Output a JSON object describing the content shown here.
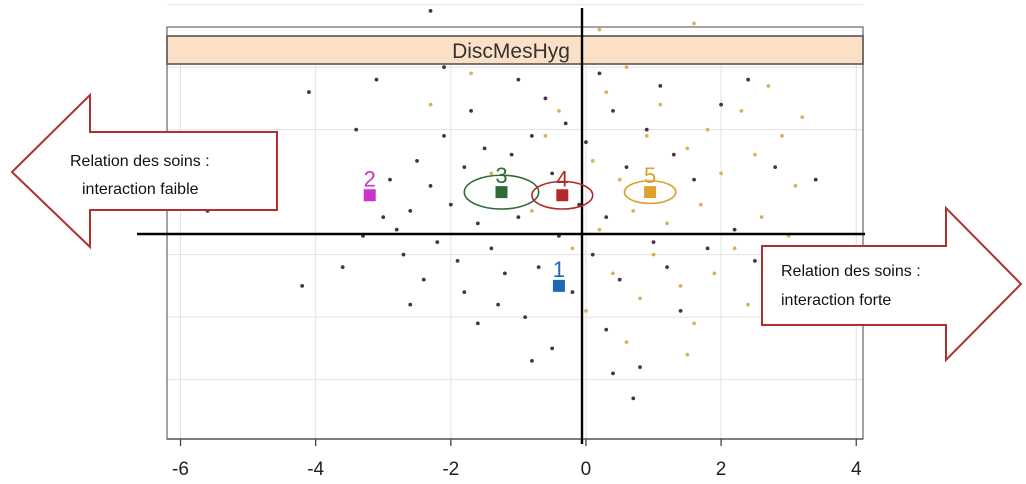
{
  "chart_data": {
    "type": "scatter",
    "title": "",
    "panel_title": "DiscMesHyg",
    "xlabel": "",
    "ylabel": "",
    "xlim": [
      -6.2,
      4.1
    ],
    "ylim": [
      -3.95,
      2.05
    ],
    "x_ticks": [
      -6,
      -4,
      -2,
      0,
      2,
      4
    ],
    "x_tick_labels": [
      "-6",
      "-4",
      "-2",
      "0",
      "2",
      "4"
    ],
    "grid": true,
    "arrow_left": {
      "line1": "Relation des soins :",
      "line2": "interaction faible"
    },
    "arrow_right": {
      "line1": "Relation des soins :",
      "line2": "interaction forte"
    },
    "clusters": [
      {
        "label": "1",
        "x": -0.4,
        "y": -1.5,
        "color": "#1f66b5",
        "ellipse": false
      },
      {
        "label": "2",
        "x": -3.2,
        "y": -0.05,
        "color": "#cc33cc",
        "ellipse": false
      },
      {
        "label": "3",
        "x": -1.25,
        "y": -0.0,
        "color": "#2e6b35",
        "ellipse": true,
        "rx": 0.55,
        "ry": 0.27
      },
      {
        "label": "4",
        "x": -0.35,
        "y": -0.05,
        "color": "#b02a2a",
        "ellipse": true,
        "rx": 0.45,
        "ry": 0.22
      },
      {
        "label": "5",
        "x": 0.95,
        "y": 0.0,
        "color": "#d9a230",
        "ellipse": true,
        "rx": 0.38,
        "ry": 0.18
      }
    ],
    "points_dark": [
      [
        -5.6,
        -0.3
      ],
      [
        -4.2,
        -1.5
      ],
      [
        -4.1,
        1.6
      ],
      [
        -3.6,
        -1.2
      ],
      [
        -3.4,
        1.0
      ],
      [
        -3.3,
        -0.7
      ],
      [
        -3.1,
        1.8
      ],
      [
        -3.0,
        -0.4
      ],
      [
        -2.9,
        0.2
      ],
      [
        -2.8,
        -0.6
      ],
      [
        -2.7,
        -1.0
      ],
      [
        -2.6,
        -0.3
      ],
      [
        -2.5,
        0.5
      ],
      [
        -2.4,
        -1.4
      ],
      [
        -2.3,
        0.1
      ],
      [
        -2.3,
        2.9
      ],
      [
        -2.2,
        -0.8
      ],
      [
        -2.1,
        0.9
      ],
      [
        -2.1,
        2.0
      ],
      [
        -2.0,
        -0.2
      ],
      [
        -1.9,
        -1.1
      ],
      [
        -1.8,
        0.4
      ],
      [
        -1.8,
        -1.6
      ],
      [
        -1.7,
        1.3
      ],
      [
        -1.6,
        -0.5
      ],
      [
        -1.5,
        0.7
      ],
      [
        -1.4,
        -0.9
      ],
      [
        -1.3,
        2.2
      ],
      [
        -1.2,
        -1.3
      ],
      [
        -1.1,
        0.6
      ],
      [
        -1.0,
        1.8
      ],
      [
        -1.0,
        -0.4
      ],
      [
        -0.9,
        -2.0
      ],
      [
        -0.8,
        0.9
      ],
      [
        -0.7,
        -1.2
      ],
      [
        -0.6,
        1.5
      ],
      [
        -0.5,
        -2.5
      ],
      [
        -0.5,
        0.3
      ],
      [
        -0.4,
        -0.7
      ],
      [
        -0.3,
        1.1
      ],
      [
        -0.2,
        -1.6
      ],
      [
        -0.1,
        2.4
      ],
      [
        -0.1,
        -0.2
      ],
      [
        0.0,
        0.8
      ],
      [
        0.1,
        -1.0
      ],
      [
        0.2,
        1.9
      ],
      [
        0.3,
        -0.4
      ],
      [
        0.3,
        -2.2
      ],
      [
        0.4,
        1.3
      ],
      [
        0.5,
        -1.4
      ],
      [
        0.6,
        0.4
      ],
      [
        0.7,
        -3.3
      ],
      [
        0.8,
        -2.8
      ],
      [
        0.9,
        1.0
      ],
      [
        1.0,
        -0.8
      ],
      [
        1.1,
        1.7
      ],
      [
        1.2,
        -1.2
      ],
      [
        1.3,
        0.6
      ],
      [
        1.4,
        -1.9
      ],
      [
        1.6,
        0.2
      ],
      [
        1.8,
        -0.9
      ],
      [
        2.0,
        1.4
      ],
      [
        2.2,
        -0.6
      ],
      [
        2.4,
        1.8
      ],
      [
        2.5,
        -1.1
      ],
      [
        2.8,
        0.4
      ],
      [
        3.4,
        0.2
      ],
      [
        -1.6,
        -2.1
      ],
      [
        -0.8,
        -2.7
      ],
      [
        0.4,
        -2.9
      ],
      [
        -2.6,
        -1.8
      ],
      [
        -1.3,
        -1.8
      ]
    ],
    "points_light": [
      [
        -2.3,
        1.4
      ],
      [
        -1.7,
        1.9
      ],
      [
        -1.4,
        0.3
      ],
      [
        -1.0,
        2.3
      ],
      [
        -0.8,
        -0.3
      ],
      [
        -0.6,
        0.9
      ],
      [
        -0.4,
        1.3
      ],
      [
        -0.2,
        -0.9
      ],
      [
        -0.1,
        3.1
      ],
      [
        0.0,
        -1.9
      ],
      [
        0.1,
        0.5
      ],
      [
        0.2,
        -0.6
      ],
      [
        0.3,
        1.6
      ],
      [
        0.4,
        -1.3
      ],
      [
        0.5,
        0.2
      ],
      [
        0.6,
        2.0
      ],
      [
        0.7,
        -0.3
      ],
      [
        0.8,
        -1.7
      ],
      [
        0.9,
        0.9
      ],
      [
        1.0,
        -1.0
      ],
      [
        1.1,
        1.4
      ],
      [
        1.2,
        -0.5
      ],
      [
        1.3,
        2.2
      ],
      [
        1.4,
        -1.5
      ],
      [
        1.5,
        0.7
      ],
      [
        1.6,
        -2.1
      ],
      [
        1.6,
        2.7
      ],
      [
        1.7,
        -0.2
      ],
      [
        1.8,
        1.0
      ],
      [
        1.9,
        -1.3
      ],
      [
        2.0,
        0.3
      ],
      [
        2.1,
        2.3
      ],
      [
        2.2,
        -0.9
      ],
      [
        2.3,
        1.3
      ],
      [
        2.4,
        -1.8
      ],
      [
        2.5,
        0.6
      ],
      [
        2.6,
        -0.4
      ],
      [
        2.7,
        1.7
      ],
      [
        2.8,
        -1.4
      ],
      [
        2.9,
        0.9
      ],
      [
        3.0,
        -0.7
      ],
      [
        3.2,
        1.2
      ],
      [
        3.3,
        -1.2
      ],
      [
        1.5,
        -2.6
      ],
      [
        0.6,
        -2.4
      ],
      [
        2.6,
        2.1
      ],
      [
        3.1,
        0.1
      ],
      [
        0.2,
        2.6
      ]
    ]
  }
}
